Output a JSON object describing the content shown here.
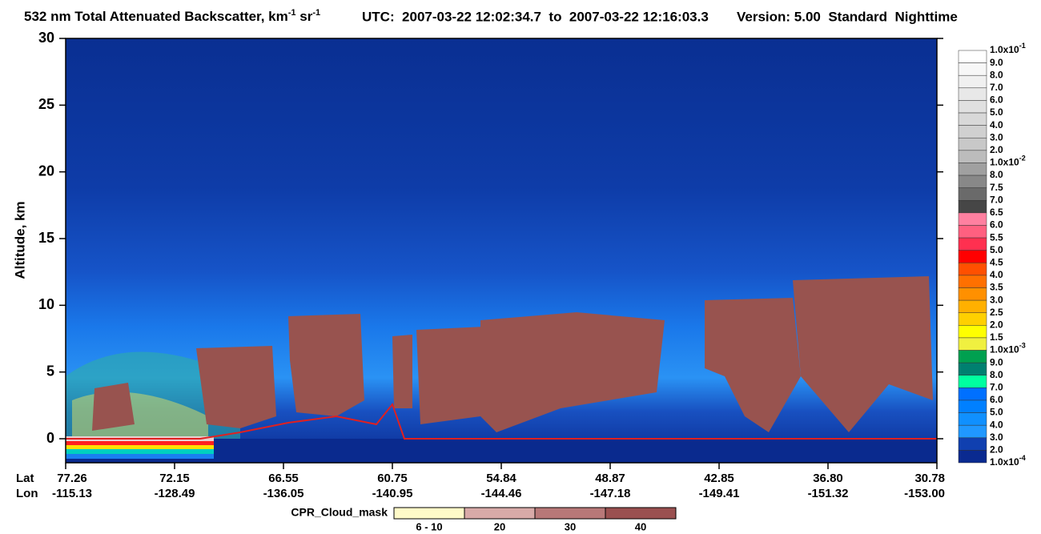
{
  "chart_data": {
    "type": "curtain",
    "title": [
      "532 nm Total Attenuated Backscatter, km",
      "-1",
      " sr",
      "-1"
    ],
    "utc": "UTC:  2007-03-22 12:02:34.7  to  2007-03-22 12:16:03.3",
    "version": "Version: 5.00  Standard  Nighttime",
    "y_label": "Altitude, km",
    "ylim": [
      -1.8,
      30
    ],
    "yticks": [
      0,
      5,
      10,
      15,
      20,
      25,
      30
    ],
    "x_row_labels": [
      "Lat",
      "Lon"
    ],
    "xticks": [
      {
        "lat": "77.26",
        "lon": "-115.13"
      },
      {
        "lat": "72.15",
        "lon": "-128.49"
      },
      {
        "lat": "66.55",
        "lon": "-136.05"
      },
      {
        "lat": "60.75",
        "lon": "-140.95"
      },
      {
        "lat": "54.84",
        "lon": "-144.46"
      },
      {
        "lat": "48.87",
        "lon": "-147.18"
      },
      {
        "lat": "42.85",
        "lon": "-149.41"
      },
      {
        "lat": "36.80",
        "lon": "-151.32"
      },
      {
        "lat": "30.78",
        "lon": "-153.00"
      }
    ],
    "colorbar": {
      "labels": [
        {
          "base": "1.0x10",
          "exp": "-1"
        },
        "9.0",
        "8.0",
        "7.0",
        "6.0",
        "5.0",
        "4.0",
        "3.0",
        "2.0",
        {
          "base": "1.0x10",
          "exp": "-2"
        },
        "8.0",
        "7.5",
        "7.0",
        "6.5",
        "6.0",
        "5.5",
        "5.0",
        "4.5",
        "4.0",
        "3.5",
        "3.0",
        "2.5",
        "2.0",
        "1.5",
        {
          "base": "1.0x10",
          "exp": "-3"
        },
        "9.0",
        "8.0",
        "7.0",
        "6.0",
        "5.0",
        "4.0",
        "3.0",
        "2.0",
        {
          "base": "1.0x10",
          "exp": "-4"
        }
      ],
      "colors": [
        "#ffffff",
        "#f7f7f7",
        "#f0f0f0",
        "#e8e8e8",
        "#e0e0e0",
        "#d8d8d8",
        "#d0d0d0",
        "#c8c8c8",
        "#bcbcbc",
        "#a0a0a0",
        "#888888",
        "#6a6a6a",
        "#464646",
        "#ff80a0",
        "#ff6080",
        "#ff3050",
        "#ff0000",
        "#ff5000",
        "#ff7000",
        "#ff9000",
        "#ffb000",
        "#ffd000",
        "#ffff00",
        "#f0f040",
        "#00a050",
        "#008070",
        "#00ffa0",
        "#0070ff",
        "#0080ff",
        "#1090ff",
        "#2098ff",
        "#1040b0",
        "#0a2a90"
      ]
    },
    "cpr_legend": {
      "title": "CPR_Cloud_mask",
      "labels": [
        "6 - 10",
        "20",
        "30",
        "40"
      ],
      "colors": [
        "#fffac8",
        "#d8aaa8",
        "#b87878",
        "#9a5050"
      ]
    }
  }
}
